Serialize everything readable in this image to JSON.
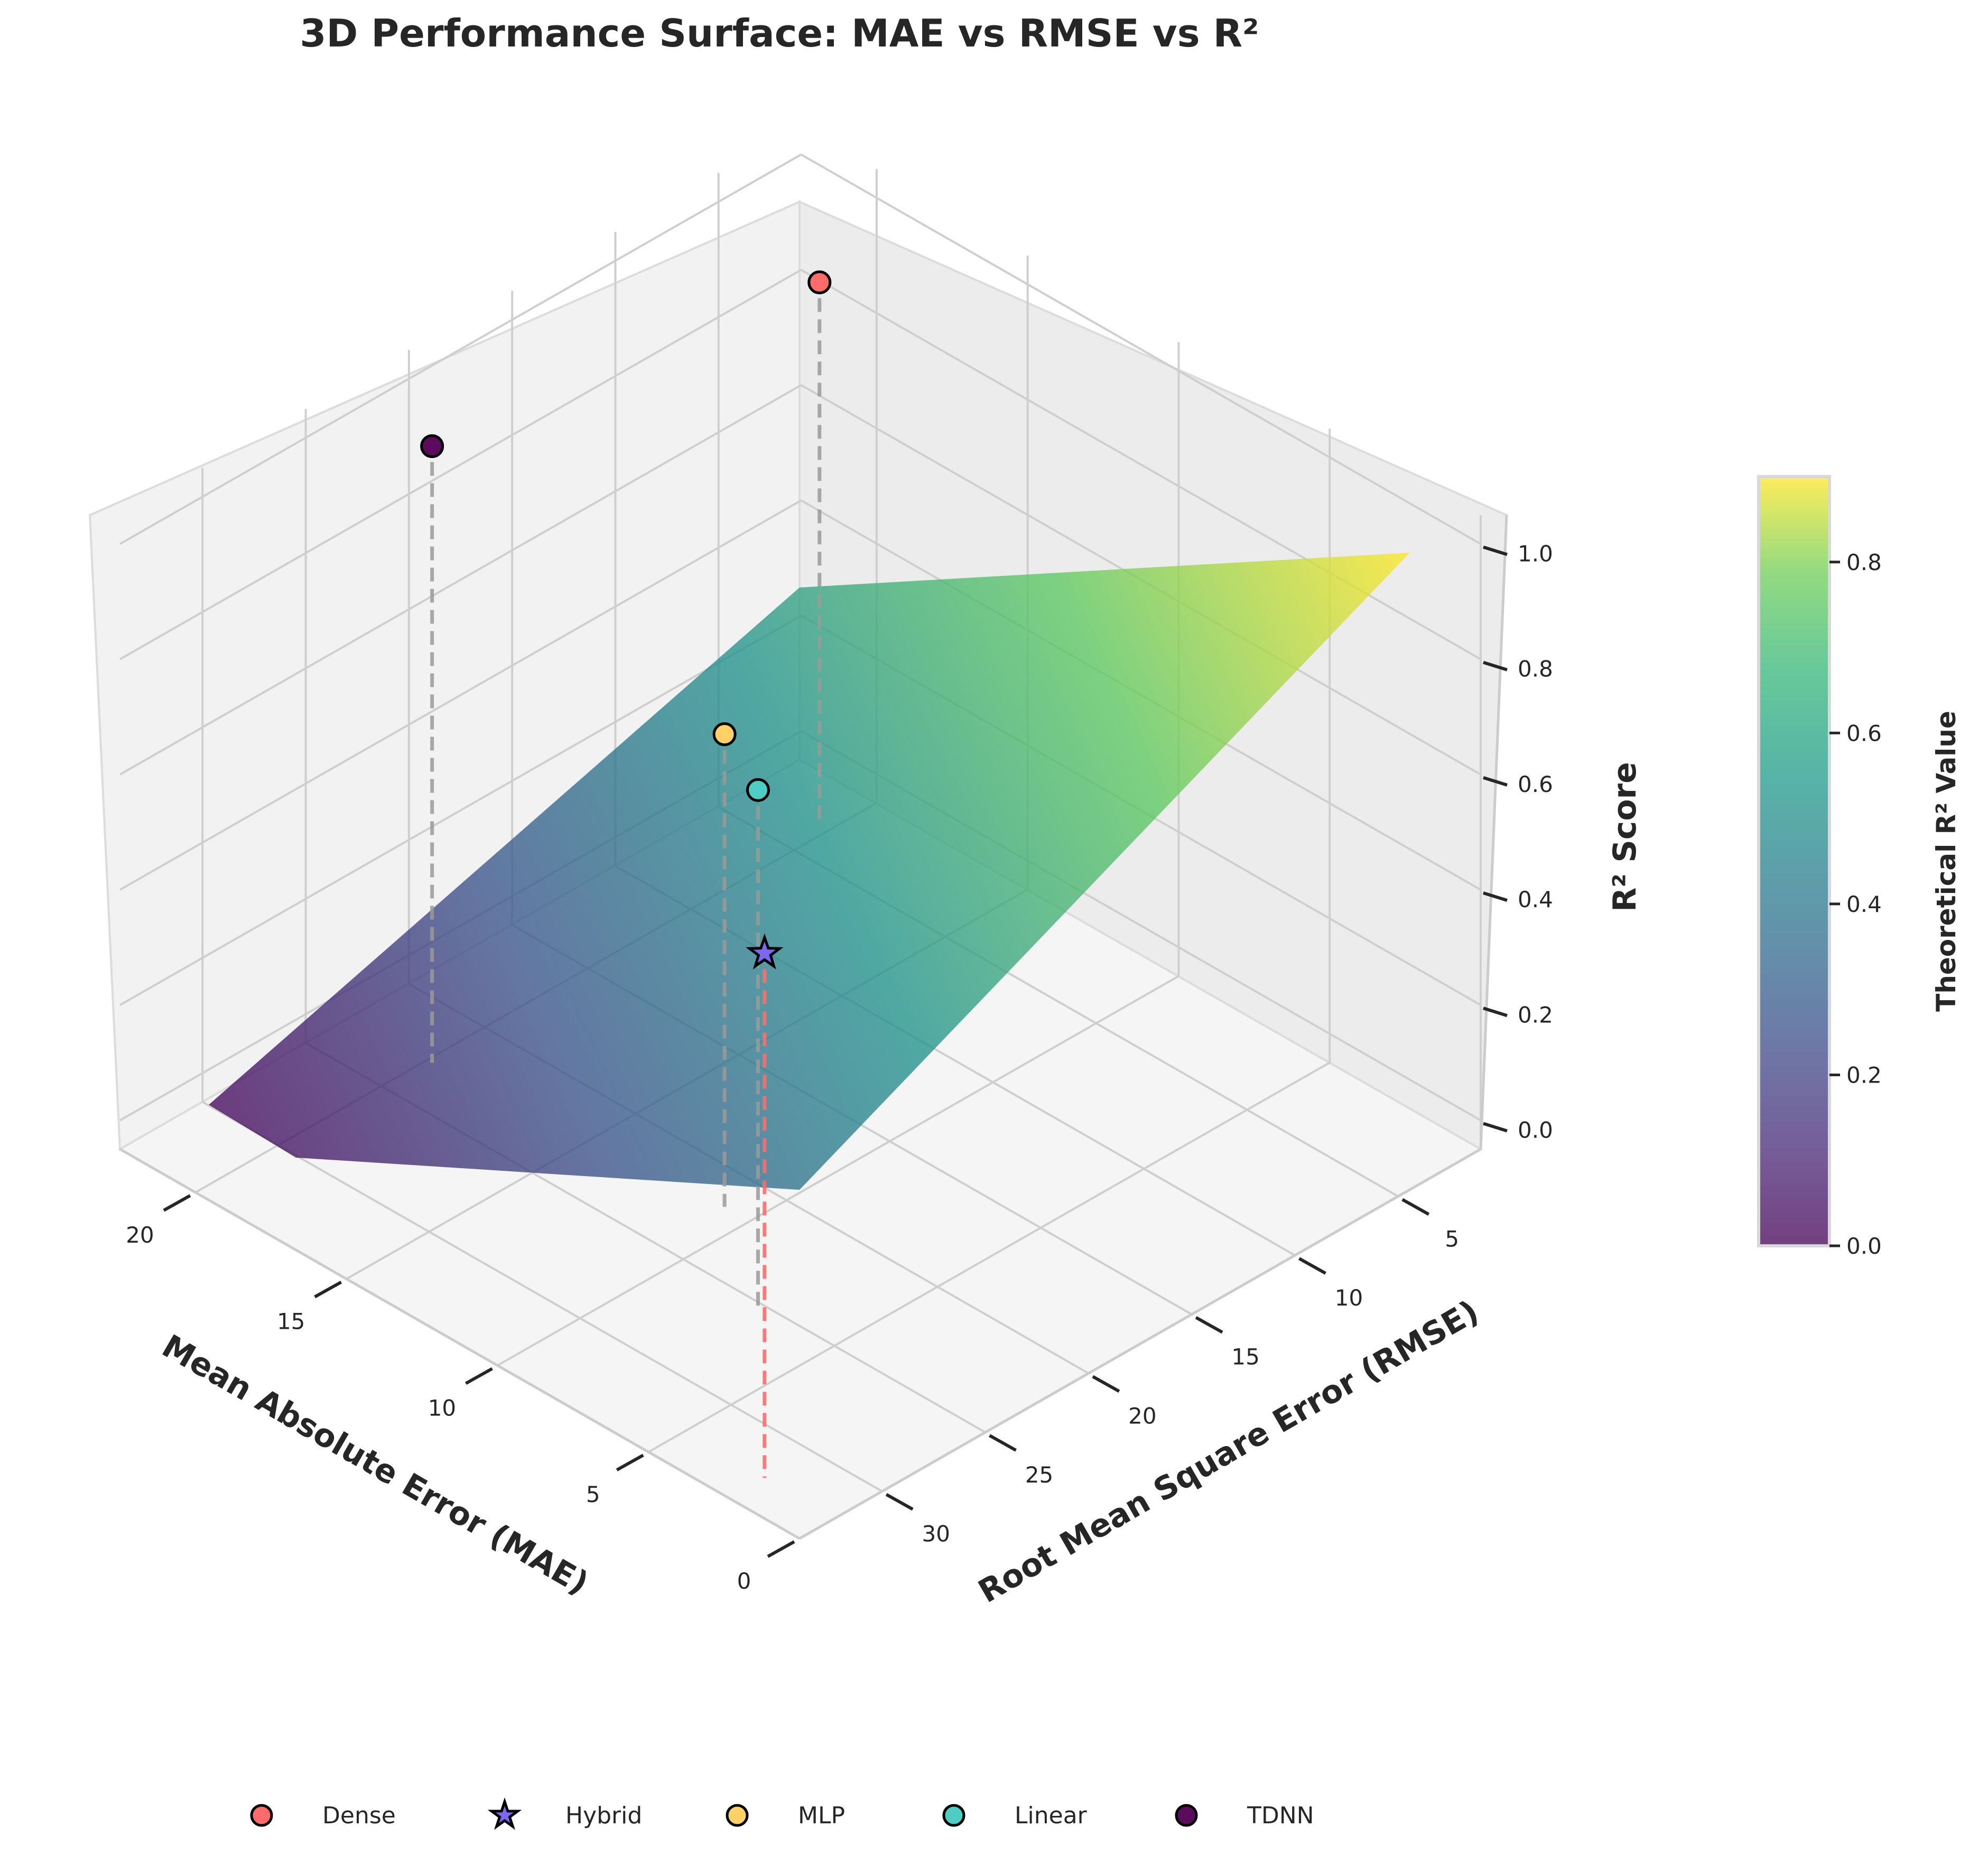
{
  "chart_data": {
    "type": "surface3d",
    "title": "3D Performance Surface: MAE vs RMSE vs R²",
    "xlabel": "Mean Absolute Error (MAE)",
    "ylabel": "Root Mean Square Error (RMSE)",
    "zlabel": "R² Score",
    "x_ticks": [
      "0",
      "5",
      "10",
      "15",
      "20"
    ],
    "y_ticks": [
      "5",
      "10",
      "15",
      "20",
      "25",
      "30"
    ],
    "z_ticks": [
      "0.0",
      "0.2",
      "0.4",
      "0.6",
      "0.8",
      "1.0"
    ],
    "xlim": [
      0,
      22.5
    ],
    "ylim": [
      1,
      34
    ],
    "zlim": [
      -0.05,
      1.05
    ],
    "grid": true,
    "surface": {
      "colormap": "viridis",
      "corners": [
        {
          "mae": 22.5,
          "rmse": 3,
          "r2": 0.0
        },
        {
          "mae": 20.5,
          "rmse": 3,
          "r2": 0.0
        },
        {
          "mae": 0,
          "rmse": 2,
          "r2": 0.0
        },
        {
          "mae": 0,
          "rmse": 33.5,
          "r2": 0.9
        },
        {
          "mae": 22.5,
          "rmse": 33.5,
          "r2": 0.43
        }
      ]
    },
    "series": [
      {
        "name": "Dense",
        "marker": "circle",
        "color": "#ff6b6b",
        "mae": 19.5,
        "rmse": 4.5,
        "r2": 0.94
      },
      {
        "name": "Hybrid",
        "marker": "star",
        "color": "#7b68ee",
        "mae": 1.5,
        "rmse": 33.5,
        "r2": 0.91
      },
      {
        "name": "MLP",
        "marker": "circle",
        "color": "#ffd166",
        "mae": 10.0,
        "rmse": 23.0,
        "r2": 0.82
      },
      {
        "name": "Linear",
        "marker": "circle",
        "color": "#4ecdc4",
        "mae": 6.5,
        "rmse": 26.5,
        "r2": 0.9
      },
      {
        "name": "TDNN",
        "marker": "circle",
        "color": "#5c0a5c",
        "mae": 19.0,
        "rmse": 24.0,
        "r2": 1.07
      }
    ],
    "colorbar": {
      "label": "Theoretical R² Value",
      "ticks": [
        "0.0",
        "0.2",
        "0.4",
        "0.6",
        "0.8"
      ],
      "range": [
        0,
        0.9
      ]
    },
    "legend_position": "bottom-center"
  }
}
